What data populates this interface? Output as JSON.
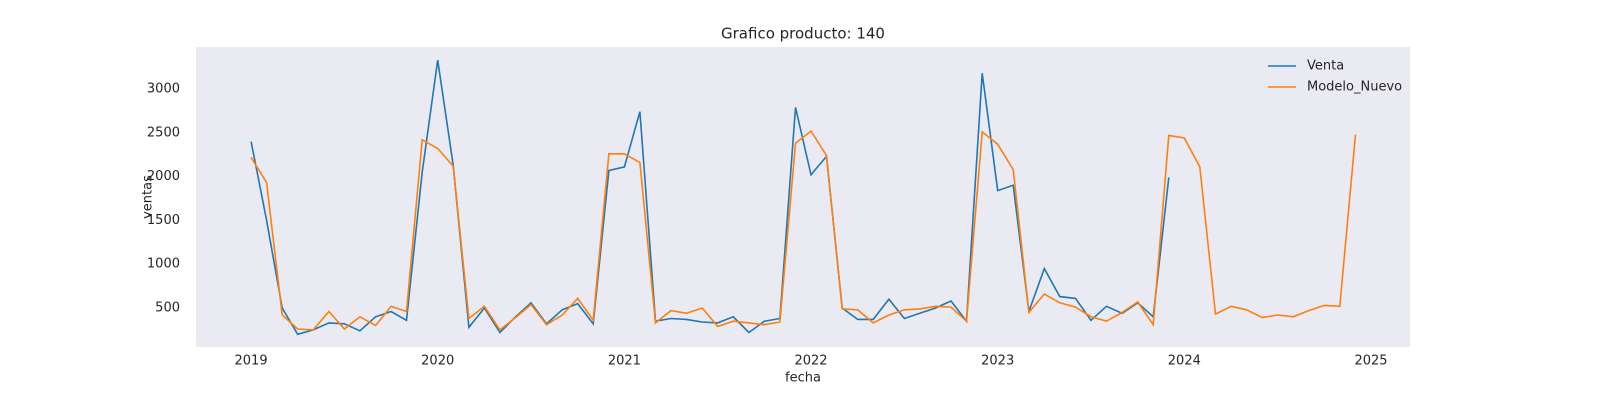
{
  "chart_data": {
    "type": "line",
    "title": "Grafico producto: 140",
    "xlabel": "fecha",
    "ylabel": "ventas",
    "x": [
      2019,
      2019.083,
      2019.167,
      2019.25,
      2019.333,
      2019.417,
      2019.5,
      2019.583,
      2019.667,
      2019.75,
      2019.833,
      2019.917,
      2020,
      2020.083,
      2020.167,
      2020.25,
      2020.333,
      2020.417,
      2020.5,
      2020.583,
      2020.667,
      2020.75,
      2020.833,
      2020.917,
      2021,
      2021.083,
      2021.167,
      2021.25,
      2021.333,
      2021.417,
      2021.5,
      2021.583,
      2021.667,
      2021.75,
      2021.833,
      2021.917,
      2022,
      2022.083,
      2022.167,
      2022.25,
      2022.333,
      2022.417,
      2022.5,
      2022.583,
      2022.667,
      2022.75,
      2022.833,
      2022.917,
      2023,
      2023.083,
      2023.167,
      2023.25,
      2023.333,
      2023.417,
      2023.5,
      2023.583,
      2023.667,
      2023.75,
      2023.833,
      2023.917,
      2024,
      2024.083,
      2024.167,
      2024.25,
      2024.333,
      2024.417,
      2024.5,
      2024.583,
      2024.667,
      2024.75,
      2024.833,
      2024.917
    ],
    "series": [
      {
        "name": "Venta",
        "color": "#1f77b4",
        "values": [
          2400,
          1500,
          500,
          200,
          250,
          330,
          320,
          240,
          400,
          460,
          360,
          2050,
          3330,
          2130,
          280,
          500,
          220,
          400,
          560,
          320,
          480,
          550,
          320,
          2070,
          2110,
          2740,
          350,
          380,
          370,
          340,
          330,
          400,
          220,
          350,
          380,
          2790,
          2020,
          2230,
          500,
          370,
          370,
          600,
          380,
          440,
          500,
          580,
          350,
          3180,
          1840,
          1900,
          460,
          950,
          630,
          610,
          360,
          520,
          440,
          560,
          400,
          1990,
          null,
          null,
          null,
          null,
          null,
          null,
          null,
          null,
          null,
          null,
          null,
          null
        ]
      },
      {
        "name": "Modelo_Nuevo",
        "color": "#ff7f0e",
        "values": [
          2220,
          1930,
          420,
          260,
          250,
          460,
          260,
          400,
          300,
          520,
          460,
          2420,
          2320,
          2120,
          380,
          520,
          250,
          390,
          540,
          310,
          420,
          610,
          360,
          2260,
          2260,
          2160,
          330,
          470,
          440,
          500,
          290,
          350,
          330,
          310,
          340,
          2380,
          2520,
          2240,
          490,
          480,
          330,
          420,
          480,
          490,
          520,
          510,
          350,
          2510,
          2370,
          2080,
          450,
          660,
          560,
          510,
          400,
          350,
          450,
          570,
          310,
          2470,
          2440,
          2110,
          430,
          520,
          480,
          390,
          420,
          400,
          470,
          530,
          520,
          2480
        ]
      }
    ],
    "xlim": [
      2018.705,
      2025.209
    ],
    "xticks": [
      2019,
      2020,
      2021,
      2022,
      2023,
      2024,
      2025
    ],
    "ylim": [
      55,
      3479
    ],
    "yticks": [
      500,
      1000,
      1500,
      2000,
      2500,
      3000
    ],
    "grid": false,
    "legend": "upper right"
  }
}
